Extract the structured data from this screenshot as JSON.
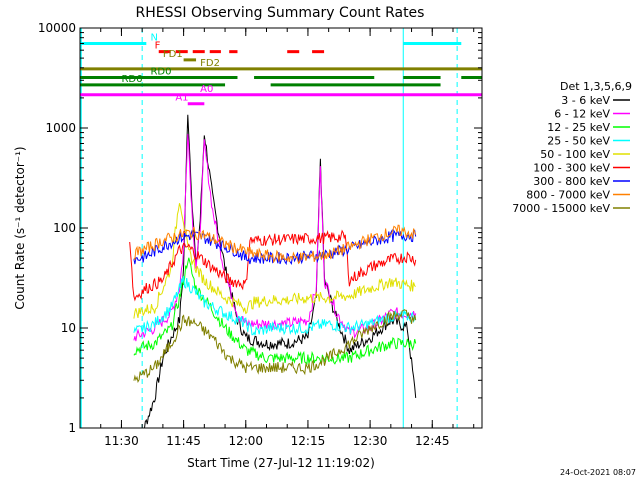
{
  "chart_data": {
    "type": "line",
    "title": "RHESSI Observing Summary Count Rates",
    "xlabel": "Start Time (27-Jul-12 11:19:02)",
    "ylabel": "Count Rate (s⁻¹ detector⁻¹)",
    "timestamp": "24-Oct-2021 08:07",
    "yscale": "log",
    "ylim": [
      1,
      10000
    ],
    "xlim": [
      "11:20",
      "12:57"
    ],
    "x_ticks": [
      "11:30",
      "11:45",
      "12:00",
      "12:15",
      "12:30",
      "12:45"
    ],
    "y_ticks": [
      "1",
      "10",
      "100",
      "1000",
      "10000"
    ],
    "legend_title": "Det 1,3,5,6,9",
    "legend_position": "right",
    "series": [
      {
        "name": "3 - 6 keV",
        "color": "#000000",
        "points": [
          [
            "11:33",
            0
          ],
          [
            "11:38",
            2
          ],
          [
            "11:40",
            5
          ],
          [
            "11:42",
            8
          ],
          [
            "11:44",
            12
          ],
          [
            "11:45",
            40
          ],
          [
            "11:46",
            1500
          ],
          [
            "11:47",
            200
          ],
          [
            "11:48",
            40
          ],
          [
            "11:49",
            120
          ],
          [
            "11:50",
            900
          ],
          [
            "11:52",
            200
          ],
          [
            "11:55",
            40
          ],
          [
            "11:58",
            12
          ],
          [
            "12:00",
            8
          ],
          [
            "12:05",
            7
          ],
          [
            "12:10",
            7
          ],
          [
            "12:15",
            8
          ],
          [
            "12:17",
            20
          ],
          [
            "12:18",
            500
          ],
          [
            "12:19",
            30
          ],
          [
            "12:22",
            12
          ],
          [
            "12:25",
            6
          ],
          [
            "12:30",
            8
          ],
          [
            "12:35",
            12
          ],
          [
            "12:39",
            10
          ],
          [
            "12:41",
            2
          ]
        ]
      },
      {
        "name": "6 - 12 keV",
        "color": "#ff00ff",
        "points": [
          [
            "11:33",
            8
          ],
          [
            "11:38",
            10
          ],
          [
            "11:42",
            14
          ],
          [
            "11:44",
            25
          ],
          [
            "11:45",
            60
          ],
          [
            "11:46",
            1000
          ],
          [
            "11:47",
            150
          ],
          [
            "11:48",
            40
          ],
          [
            "11:49",
            100
          ],
          [
            "11:50",
            700
          ],
          [
            "11:52",
            150
          ],
          [
            "11:55",
            35
          ],
          [
            "11:58",
            14
          ],
          [
            "12:00",
            11
          ],
          [
            "12:05",
            11
          ],
          [
            "12:10",
            11
          ],
          [
            "12:15",
            12
          ],
          [
            "12:17",
            25
          ],
          [
            "12:18",
            400
          ],
          [
            "12:19",
            30
          ],
          [
            "12:22",
            14
          ],
          [
            "12:25",
            9
          ],
          [
            "12:30",
            10
          ],
          [
            "12:35",
            14
          ],
          [
            "12:41",
            14
          ]
        ]
      },
      {
        "name": "12 - 25 keV",
        "color": "#00ff00",
        "points": [
          [
            "11:33",
            6
          ],
          [
            "11:38",
            7
          ],
          [
            "11:42",
            10
          ],
          [
            "11:44",
            20
          ],
          [
            "11:45",
            30
          ],
          [
            "11:46",
            50
          ],
          [
            "11:48",
            25
          ],
          [
            "11:50",
            20
          ],
          [
            "11:55",
            10
          ],
          [
            "12:00",
            6
          ],
          [
            "12:05",
            5
          ],
          [
            "12:10",
            5
          ],
          [
            "12:15",
            5
          ],
          [
            "12:20",
            5
          ],
          [
            "12:25",
            5
          ],
          [
            "12:30",
            6
          ],
          [
            "12:35",
            7
          ],
          [
            "12:41",
            7
          ]
        ]
      },
      {
        "name": "25 - 50 keV",
        "color": "#00ffff",
        "points": [
          [
            "11:33",
            9
          ],
          [
            "11:38",
            11
          ],
          [
            "11:42",
            16
          ],
          [
            "11:45",
            30
          ],
          [
            "11:47",
            25
          ],
          [
            "11:50",
            18
          ],
          [
            "11:55",
            14
          ],
          [
            "12:00",
            11
          ],
          [
            "12:02",
            9
          ],
          [
            "12:06",
            10
          ],
          [
            "12:10",
            10
          ],
          [
            "12:15",
            10
          ],
          [
            "12:20",
            11
          ],
          [
            "12:25",
            10
          ],
          [
            "12:30",
            11
          ],
          [
            "12:35",
            13
          ],
          [
            "12:41",
            13
          ]
        ]
      },
      {
        "name": "50 - 100 keV",
        "color": "#e0e000",
        "points": [
          [
            "11:33",
            14
          ],
          [
            "11:38",
            16
          ],
          [
            "11:42",
            40
          ],
          [
            "11:44",
            200
          ],
          [
            "11:45",
            120
          ],
          [
            "11:46",
            60
          ],
          [
            "11:48",
            40
          ],
          [
            "11:50",
            30
          ],
          [
            "11:55",
            20
          ],
          [
            "12:00",
            16
          ],
          [
            "12:02",
            18
          ],
          [
            "12:06",
            19
          ],
          [
            "12:10",
            19
          ],
          [
            "12:15",
            20
          ],
          [
            "12:20",
            20
          ],
          [
            "12:25",
            21
          ],
          [
            "12:30",
            25
          ],
          [
            "12:35",
            29
          ],
          [
            "12:41",
            26
          ]
        ]
      },
      {
        "name": "100 - 300 keV",
        "color": "#ff0000",
        "points": [
          [
            "11:32",
            80
          ],
          [
            "11:33",
            20
          ],
          [
            "11:36",
            25
          ],
          [
            "11:40",
            30
          ],
          [
            "11:44",
            60
          ],
          [
            "11:46",
            65
          ],
          [
            "11:48",
            55
          ],
          [
            "11:52",
            40
          ],
          [
            "11:56",
            30
          ],
          [
            "11:59",
            28
          ],
          [
            "12:00",
            27
          ],
          [
            "12:01",
            75
          ],
          [
            "12:05",
            76
          ],
          [
            "12:10",
            77
          ],
          [
            "12:15",
            78
          ],
          [
            "12:20",
            80
          ],
          [
            "12:24",
            82
          ],
          [
            "12:25",
            30
          ],
          [
            "12:28",
            36
          ],
          [
            "12:31",
            42
          ],
          [
            "12:35",
            48
          ],
          [
            "12:39",
            52
          ],
          [
            "12:41",
            48
          ]
        ]
      },
      {
        "name": "300 - 800 keV",
        "color": "#0000ff",
        "points": [
          [
            "11:33",
            48
          ],
          [
            "11:36",
            52
          ],
          [
            "11:40",
            65
          ],
          [
            "11:44",
            80
          ],
          [
            "11:47",
            85
          ],
          [
            "11:50",
            80
          ],
          [
            "11:54",
            68
          ],
          [
            "11:58",
            58
          ],
          [
            "12:00",
            50
          ],
          [
            "12:05",
            50
          ],
          [
            "12:10",
            50
          ],
          [
            "12:15",
            52
          ],
          [
            "12:20",
            55
          ],
          [
            "12:25",
            62
          ],
          [
            "12:30",
            72
          ],
          [
            "12:35",
            82
          ],
          [
            "12:39",
            85
          ],
          [
            "12:41",
            82
          ]
        ]
      },
      {
        "name": "800 - 7000 keV",
        "color": "#ff8000",
        "points": [
          [
            "11:33",
            55
          ],
          [
            "11:36",
            62
          ],
          [
            "11:40",
            75
          ],
          [
            "11:44",
            85
          ],
          [
            "11:47",
            90
          ],
          [
            "11:50",
            85
          ],
          [
            "11:54",
            72
          ],
          [
            "11:58",
            62
          ],
          [
            "12:02",
            55
          ],
          [
            "12:07",
            52
          ],
          [
            "12:12",
            50
          ],
          [
            "12:17",
            52
          ],
          [
            "12:21",
            56
          ],
          [
            "12:25",
            64
          ],
          [
            "12:30",
            78
          ],
          [
            "12:34",
            88
          ],
          [
            "12:37",
            94
          ],
          [
            "12:40",
            88
          ],
          [
            "12:41",
            86
          ]
        ]
      },
      {
        "name": "7000 - 15000 keV",
        "color": "#808000",
        "points": [
          [
            "11:33",
            3
          ],
          [
            "11:38",
            4
          ],
          [
            "11:42",
            7
          ],
          [
            "11:45",
            12
          ],
          [
            "11:48",
            11
          ],
          [
            "11:52",
            8
          ],
          [
            "11:56",
            5
          ],
          [
            "12:00",
            4
          ],
          [
            "12:05",
            4
          ],
          [
            "12:10",
            4
          ],
          [
            "12:15",
            4
          ],
          [
            "12:20",
            5
          ],
          [
            "12:25",
            7
          ],
          [
            "12:30",
            10
          ],
          [
            "12:35",
            13
          ],
          [
            "12:38",
            14
          ],
          [
            "12:41",
            12
          ]
        ]
      }
    ],
    "vertical_lines": [
      {
        "time": "11:35",
        "color": "#00ffff",
        "style": "dashed"
      },
      {
        "time": "12:38",
        "color": "#00ffff",
        "style": "solid"
      },
      {
        "time": "12:51",
        "color": "#00ffff",
        "style": "dashed"
      }
    ],
    "flag_bars": [
      {
        "label": "N",
        "color": "#00ffff",
        "level": 7000,
        "segments": [
          [
            "11:20",
            "11:36"
          ],
          [
            "12:38",
            "12:52"
          ]
        ],
        "label_time": "11:37"
      },
      {
        "label": "F",
        "color": "#ff0000",
        "level": 5800,
        "segments": [
          [
            "11:39",
            "11:54"
          ],
          [
            "11:56",
            "11:58"
          ],
          [
            "12:10",
            "12:14"
          ],
          [
            "12:16",
            "12:19"
          ]
        ],
        "dashed": true,
        "label_time": "11:38"
      },
      {
        "label": "FD1",
        "color": "#808000",
        "level": 4800,
        "segments": [
          [
            "11:45",
            "11:48"
          ]
        ],
        "label_time": "11:40"
      },
      {
        "label": "FD2",
        "color": "#808000",
        "level": 3900,
        "segments": [
          [
            "11:20",
            "12:57"
          ]
        ],
        "label_time": "11:49"
      },
      {
        "label": "RD0",
        "color": "#008000",
        "level": 3200,
        "segments": [
          [
            "11:20",
            "11:58"
          ],
          [
            "12:02",
            "12:31"
          ],
          [
            "12:38",
            "12:47"
          ],
          [
            "12:52",
            "12:57"
          ]
        ],
        "label_time": "11:37"
      },
      {
        "label": "RD6",
        "color": "#008000",
        "level": 2700,
        "segments": [
          [
            "11:20",
            "11:55"
          ],
          [
            "12:06",
            "12:47"
          ]
        ],
        "label_time": "11:30"
      },
      {
        "label": "A0",
        "color": "#ff00ff",
        "level": 2150,
        "segments": [
          [
            "11:20",
            "12:57"
          ]
        ],
        "label_time": "11:49"
      },
      {
        "label": "A1",
        "color": "#ff00ff",
        "level": 1750,
        "segments": [
          [
            "11:46",
            "11:50"
          ]
        ],
        "label_time": "11:43"
      }
    ]
  }
}
